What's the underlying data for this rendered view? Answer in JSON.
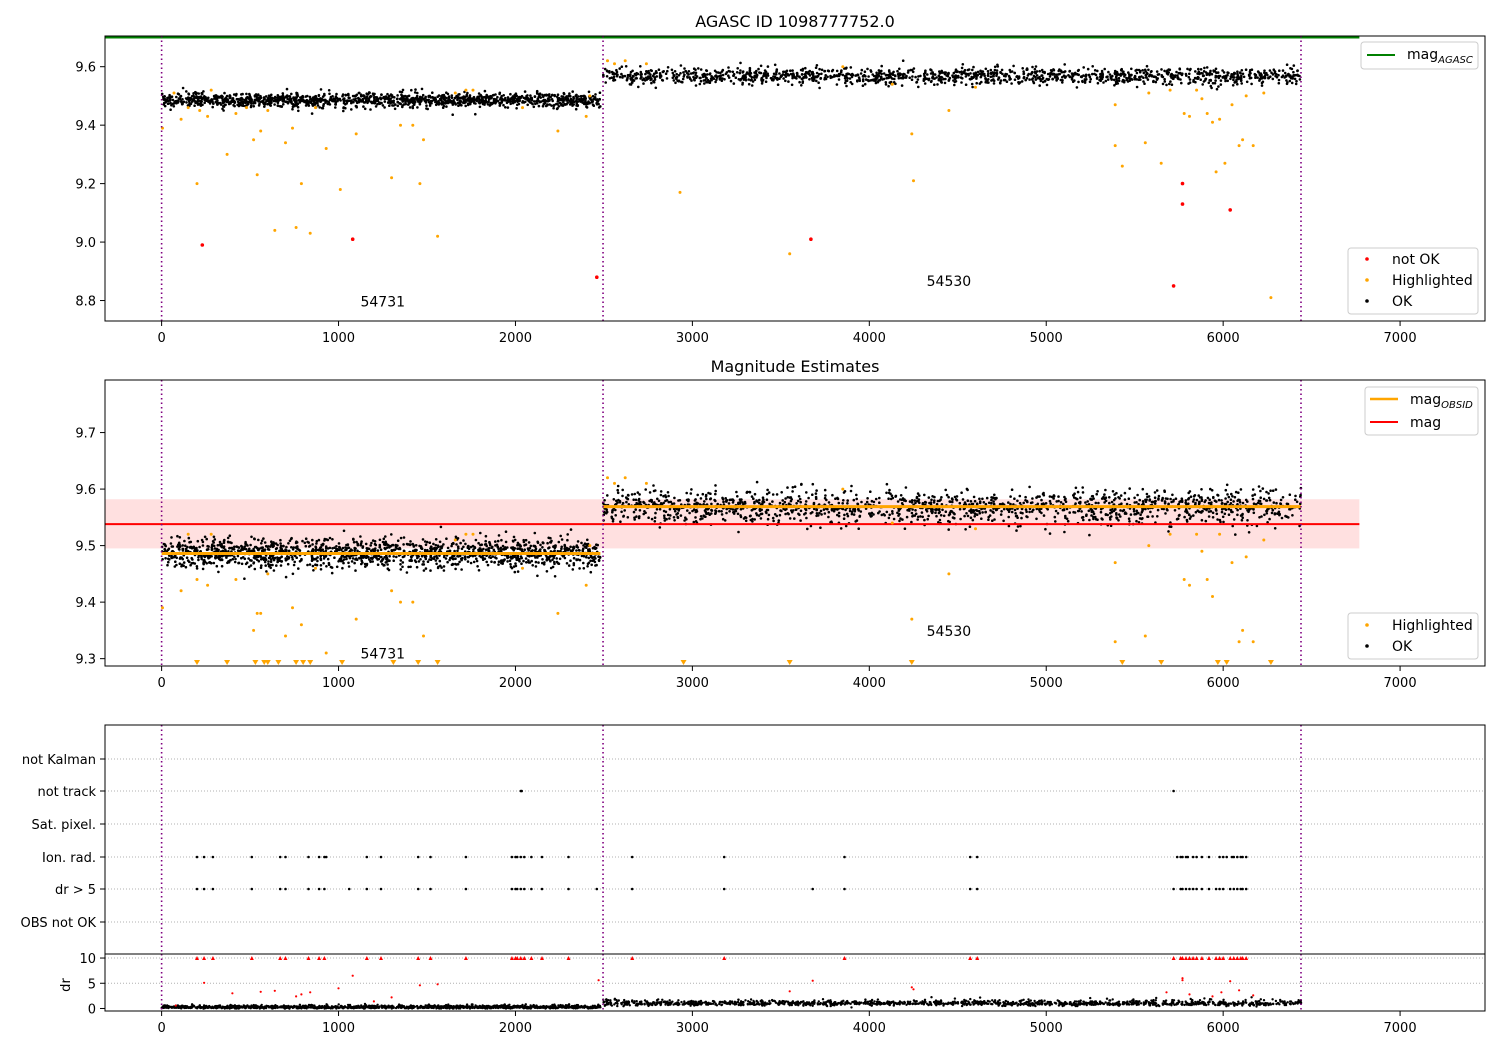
{
  "chart_data": [
    {
      "type": "scatter",
      "title": "AGASC ID 1098777752.0",
      "xlabel": "",
      "ylabel": "",
      "xlim": [
        -320,
        7480
      ],
      "ylim": [
        8.73,
        9.705
      ],
      "x_ticks": [
        0,
        1000,
        2000,
        3000,
        4000,
        5000,
        6000,
        7000
      ],
      "y_ticks": [
        8.8,
        9.0,
        9.2,
        9.4,
        9.6
      ],
      "y_tick_labels": [
        "8.8",
        "9.0",
        "9.2",
        "9.4",
        "9.6"
      ],
      "obsid_boundaries": [
        0,
        2495,
        6440
      ],
      "obsid_labels": [
        {
          "text": "54731",
          "x": 1250,
          "y": 8.78
        },
        {
          "text": "54530",
          "x": 4450,
          "y": 8.85
        }
      ],
      "reference_line": {
        "name": "mag_AGASC",
        "value": 9.7,
        "x_range": [
          -320,
          6770
        ],
        "color": "#008000"
      },
      "ok_bands": [
        {
          "x_range": [
            0,
            2480
          ],
          "center": 9.486,
          "spread": 0.012
        },
        {
          "x_range": [
            2495,
            6440
          ],
          "center": 9.568,
          "spread": 0.014
        }
      ],
      "highlighted_points": [
        [
          5,
          9.39
        ],
        [
          70,
          9.51
        ],
        [
          110,
          9.42
        ],
        [
          150,
          9.46
        ],
        [
          200,
          9.2
        ],
        [
          215,
          9.45
        ],
        [
          260,
          9.43
        ],
        [
          280,
          9.52
        ],
        [
          370,
          9.3
        ],
        [
          420,
          9.44
        ],
        [
          480,
          9.46
        ],
        [
          520,
          9.35
        ],
        [
          540,
          9.23
        ],
        [
          560,
          9.38
        ],
        [
          600,
          9.45
        ],
        [
          640,
          9.04
        ],
        [
          700,
          9.34
        ],
        [
          740,
          9.39
        ],
        [
          760,
          9.05
        ],
        [
          790,
          9.2
        ],
        [
          840,
          9.03
        ],
        [
          870,
          9.46
        ],
        [
          930,
          9.32
        ],
        [
          1010,
          9.18
        ],
        [
          1100,
          9.37
        ],
        [
          1300,
          9.22
        ],
        [
          1350,
          9.4
        ],
        [
          1420,
          9.4
        ],
        [
          1460,
          9.2
        ],
        [
          1480,
          9.35
        ],
        [
          1560,
          9.02
        ],
        [
          1660,
          9.51
        ],
        [
          1720,
          9.52
        ],
        [
          1760,
          9.52
        ],
        [
          2040,
          9.46
        ],
        [
          2240,
          9.38
        ],
        [
          2400,
          9.43
        ],
        [
          2420,
          9.5
        ],
        [
          2520,
          9.62
        ],
        [
          2560,
          9.61
        ],
        [
          2620,
          9.62
        ],
        [
          2740,
          9.61
        ],
        [
          2930,
          9.17
        ],
        [
          3550,
          8.96
        ],
        [
          3850,
          9.6
        ],
        [
          4130,
          9.54
        ],
        [
          4240,
          9.37
        ],
        [
          4250,
          9.21
        ],
        [
          4450,
          9.45
        ],
        [
          4600,
          9.53
        ],
        [
          5390,
          9.47
        ],
        [
          5390,
          9.33
        ],
        [
          5430,
          9.26
        ],
        [
          5560,
          9.34
        ],
        [
          5580,
          9.51
        ],
        [
          5650,
          9.27
        ],
        [
          5700,
          9.52
        ],
        [
          5780,
          9.44
        ],
        [
          5810,
          9.43
        ],
        [
          5850,
          9.52
        ],
        [
          5880,
          9.49
        ],
        [
          5910,
          9.44
        ],
        [
          5940,
          9.41
        ],
        [
          5960,
          9.24
        ],
        [
          5980,
          9.42
        ],
        [
          6010,
          9.27
        ],
        [
          6050,
          9.47
        ],
        [
          6090,
          9.33
        ],
        [
          6110,
          9.35
        ],
        [
          6130,
          9.5
        ],
        [
          6170,
          9.33
        ],
        [
          6230,
          9.51
        ],
        [
          6270,
          8.81
        ]
      ],
      "not_ok_points": [
        [
          230,
          8.99
        ],
        [
          1080,
          9.01
        ],
        [
          2460,
          8.88
        ],
        [
          3670,
          9.01
        ],
        [
          5720,
          8.85
        ],
        [
          5770,
          9.2
        ],
        [
          5770,
          9.13
        ],
        [
          6040,
          9.11
        ]
      ],
      "legends": [
        {
          "position": "top-right",
          "entries": [
            {
              "label": "mag",
              "subscript": "AGASC",
              "color": "#008000",
              "kind": "line"
            }
          ]
        },
        {
          "position": "bottom-right",
          "entries": [
            {
              "label": "not OK",
              "color": "#ff0000",
              "kind": "marker"
            },
            {
              "label": "Highlighted",
              "color": "#ffa500",
              "kind": "marker"
            },
            {
              "label": "OK",
              "color": "#000000",
              "kind": "marker"
            }
          ]
        }
      ]
    },
    {
      "type": "scatter",
      "title": "Magnitude Estimates",
      "xlabel": "",
      "ylabel": "",
      "xlim": [
        -320,
        7480
      ],
      "ylim": [
        9.287,
        9.793
      ],
      "x_ticks": [
        0,
        1000,
        2000,
        3000,
        4000,
        5000,
        6000,
        7000
      ],
      "y_ticks": [
        9.3,
        9.4,
        9.5,
        9.6,
        9.7
      ],
      "y_tick_labels": [
        "9.3",
        "9.4",
        "9.5",
        "9.6",
        "9.7"
      ],
      "obsid_boundaries": [
        0,
        2495,
        6440
      ],
      "obsid_labels": [
        {
          "text": "54731",
          "x": 1250,
          "y": 9.3
        },
        {
          "text": "54530",
          "x": 4450,
          "y": 9.34
        }
      ],
      "mag_line": {
        "name": "mag",
        "value": 9.538,
        "band": [
          9.495,
          9.582
        ],
        "x_range": [
          -320,
          6770
        ],
        "color": "#ff0000"
      },
      "obsid_mag_lines": [
        {
          "name": "mag_OBSID",
          "x_range": [
            0,
            2480
          ],
          "value": 9.486,
          "color": "#ffa500"
        },
        {
          "name": "mag_OBSID",
          "x_range": [
            2495,
            6440
          ],
          "value": 9.569,
          "color": "#ffa500"
        }
      ],
      "ok_bands": [
        {
          "x_range": [
            0,
            2480
          ],
          "center": 9.486,
          "spread": 0.013
        },
        {
          "x_range": [
            2495,
            6440
          ],
          "center": 9.568,
          "spread": 0.015
        }
      ],
      "highlighted_points": [
        [
          5,
          9.39
        ],
        [
          110,
          9.42
        ],
        [
          150,
          9.52
        ],
        [
          200,
          9.44
        ],
        [
          260,
          9.43
        ],
        [
          280,
          9.52
        ],
        [
          420,
          9.44
        ],
        [
          520,
          9.35
        ],
        [
          540,
          9.38
        ],
        [
          560,
          9.38
        ],
        [
          600,
          9.45
        ],
        [
          700,
          9.34
        ],
        [
          740,
          9.39
        ],
        [
          790,
          9.36
        ],
        [
          870,
          9.46
        ],
        [
          930,
          9.31
        ],
        [
          1100,
          9.37
        ],
        [
          1300,
          9.42
        ],
        [
          1350,
          9.4
        ],
        [
          1420,
          9.4
        ],
        [
          1480,
          9.34
        ],
        [
          1660,
          9.51
        ],
        [
          1720,
          9.52
        ],
        [
          1760,
          9.52
        ],
        [
          2040,
          9.46
        ],
        [
          2240,
          9.38
        ],
        [
          2400,
          9.43
        ],
        [
          2420,
          9.5
        ],
        [
          2520,
          9.62
        ],
        [
          2560,
          9.61
        ],
        [
          2620,
          9.62
        ],
        [
          2740,
          9.61
        ],
        [
          3850,
          9.6
        ],
        [
          4130,
          9.54
        ],
        [
          4240,
          9.37
        ],
        [
          4450,
          9.45
        ],
        [
          4600,
          9.53
        ],
        [
          5390,
          9.47
        ],
        [
          5390,
          9.33
        ],
        [
          5560,
          9.34
        ],
        [
          5580,
          9.5
        ],
        [
          5700,
          9.52
        ],
        [
          5780,
          9.44
        ],
        [
          5810,
          9.43
        ],
        [
          5850,
          9.52
        ],
        [
          5880,
          9.49
        ],
        [
          5910,
          9.44
        ],
        [
          5940,
          9.41
        ],
        [
          5980,
          9.52
        ],
        [
          6050,
          9.47
        ],
        [
          6090,
          9.33
        ],
        [
          6110,
          9.35
        ],
        [
          6130,
          9.48
        ],
        [
          6170,
          9.33
        ],
        [
          6230,
          9.51
        ]
      ],
      "clipped_markers": [
        200,
        370,
        530,
        580,
        600,
        660,
        760,
        800,
        840,
        1020,
        1310,
        1450,
        1560,
        2950,
        3550,
        4240,
        5430,
        5650,
        5970,
        6020,
        6270
      ],
      "legends": [
        {
          "position": "top-right",
          "entries": [
            {
              "label": "mag",
              "subscript": "OBSID",
              "color": "#ffa500",
              "kind": "line"
            },
            {
              "label": "mag",
              "subscript": "",
              "color": "#ff0000",
              "kind": "line"
            }
          ]
        },
        {
          "position": "bottom-right",
          "entries": [
            {
              "label": "Highlighted",
              "color": "#ffa500",
              "kind": "marker"
            },
            {
              "label": "OK",
              "color": "#000000",
              "kind": "marker"
            }
          ]
        }
      ]
    },
    {
      "type": "scatter",
      "title": "",
      "xlabel": "",
      "ylabel": "",
      "xlim": [
        -320,
        7480
      ],
      "categories": [
        "not Kalman",
        "not track",
        "Sat. pixel.",
        "Ion. rad.",
        "dr > 5",
        "OBS not OK"
      ],
      "obsid_boundaries": [
        0,
        2495,
        6440
      ],
      "flag_points": {
        "not track": [
          2030,
          2035,
          5720
        ],
        "Ion. rad.": [
          200,
          240,
          290,
          510,
          670,
          700,
          830,
          890,
          920,
          930,
          1160,
          1240,
          1450,
          1520,
          1720,
          1980,
          2000,
          2010,
          2030,
          2050,
          2090,
          2150,
          2300,
          2660,
          3180,
          3860,
          4570,
          4610,
          5740,
          5760,
          5770,
          5790,
          5800,
          5830,
          5850,
          5880,
          5920,
          5980,
          6000,
          6020,
          6050,
          6060,
          6080,
          6100,
          6110,
          6130
        ],
        "dr > 5": [
          200,
          240,
          290,
          510,
          670,
          700,
          830,
          890,
          920,
          1060,
          1160,
          1240,
          1450,
          1520,
          1720,
          1980,
          2000,
          2010,
          2030,
          2050,
          2090,
          2150,
          2300,
          2460,
          2660,
          3180,
          3680,
          3860,
          4570,
          4610,
          5720,
          5760,
          5770,
          5790,
          5810,
          5830,
          5850,
          5880,
          5920,
          5960,
          5980,
          6000,
          6040,
          6060,
          6080,
          6100,
          6110,
          6130
        ]
      }
    },
    {
      "type": "scatter",
      "title": "",
      "xlabel": "",
      "ylabel": "dr",
      "xlim": [
        -320,
        7480
      ],
      "ylim": [
        -0.5,
        10.8
      ],
      "x_ticks": [
        0,
        1000,
        2000,
        3000,
        4000,
        5000,
        6000,
        7000
      ],
      "y_ticks": [
        0,
        5,
        10
      ],
      "y_tick_labels": [
        "0",
        "5",
        "10"
      ],
      "obsid_boundaries": [
        0,
        2495,
        6440
      ],
      "dr_bands": [
        {
          "x_range": [
            0,
            2480
          ],
          "center": 0.25,
          "spread": 0.2
        },
        {
          "x_range": [
            2495,
            6440
          ],
          "center": 1.0,
          "spread": 0.35
        }
      ],
      "small_dr_points": [
        [
          80,
          0.6
        ],
        [
          240,
          5.1
        ],
        [
          400,
          3.0
        ],
        [
          560,
          3.3
        ],
        [
          640,
          3.5
        ],
        [
          760,
          2.4
        ],
        [
          790,
          2.8
        ],
        [
          840,
          3.2
        ],
        [
          1000,
          4.0
        ],
        [
          1080,
          6.5
        ],
        [
          1200,
          1.4
        ],
        [
          1300,
          2.2
        ],
        [
          1460,
          4.6
        ],
        [
          1560,
          4.8
        ],
        [
          2470,
          5.6
        ],
        [
          3550,
          3.4
        ],
        [
          3680,
          5.5
        ],
        [
          4240,
          4.2
        ],
        [
          4250,
          3.8
        ],
        [
          5680,
          3.2
        ],
        [
          5770,
          6.0
        ],
        [
          5770,
          5.6
        ],
        [
          5810,
          2.8
        ],
        [
          5940,
          2.4
        ],
        [
          5990,
          3.2
        ],
        [
          6040,
          5.4
        ],
        [
          6090,
          3.6
        ],
        [
          6170,
          2.6
        ]
      ],
      "large_dr_markers": [
        200,
        240,
        290,
        510,
        670,
        700,
        830,
        890,
        920,
        1160,
        1240,
        1450,
        1520,
        1720,
        1980,
        2000,
        2010,
        2030,
        2050,
        2090,
        2150,
        2300,
        2660,
        3180,
        3860,
        4570,
        4610,
        5720,
        5760,
        5770,
        5790,
        5810,
        5830,
        5850,
        5880,
        5920,
        5960,
        5980,
        6000,
        6040,
        6060,
        6080,
        6100,
        6110,
        6130
      ]
    }
  ]
}
